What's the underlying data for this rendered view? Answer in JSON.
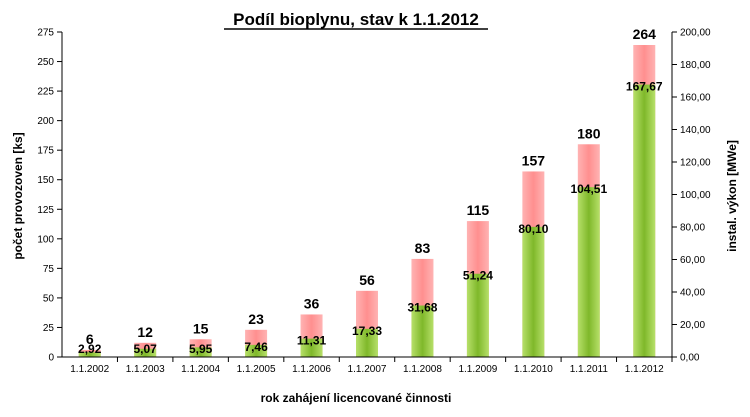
{
  "chart_data": {
    "type": "bar",
    "title": "Podíl bioplynu, stav k 1.1.2012",
    "xlabel": "rok zahájení licencované činnosti",
    "ylabel": "počet provozoven [ks]",
    "y2label": "instal. výkon [MWe]",
    "categories": [
      "1.1.2002",
      "1.1.2003",
      "1.1.2004",
      "1.1.2005",
      "1.1.2006",
      "1.1.2007",
      "1.1.2008",
      "1.1.2009",
      "1.1.2010",
      "1.1.2011",
      "1.1.2012"
    ],
    "series": [
      {
        "axis": "left",
        "color": "#ff9a9a",
        "values": [
          6,
          12,
          15,
          23,
          36,
          56,
          83,
          115,
          157,
          180,
          264
        ],
        "labels": [
          "6",
          "12",
          "15",
          "23",
          "36",
          "56",
          "83",
          "115",
          "157",
          "180",
          "264"
        ]
      },
      {
        "axis": "right",
        "color": "#8dc63f",
        "values": [
          2.92,
          5.07,
          5.95,
          7.46,
          11.31,
          17.33,
          31.68,
          51.24,
          80.1,
          104.51,
          167.67
        ],
        "labels": [
          "2,92",
          "5,07",
          "5,95",
          "7,46",
          "11,31",
          "17,33",
          "31,68",
          "51,24",
          "80,10",
          "104,51",
          "167,67"
        ]
      }
    ],
    "ylim": [
      0,
      275
    ],
    "yticks": [
      "0",
      "25",
      "50",
      "75",
      "100",
      "125",
      "150",
      "175",
      "200",
      "225",
      "250",
      "275"
    ],
    "y2lim": [
      0,
      200
    ],
    "y2ticks": [
      "0,00",
      "20,00",
      "40,00",
      "60,00",
      "80,00",
      "100,00",
      "120,00",
      "140,00",
      "160,00",
      "180,00",
      "200,00"
    ],
    "grid": false,
    "legend": "none"
  }
}
